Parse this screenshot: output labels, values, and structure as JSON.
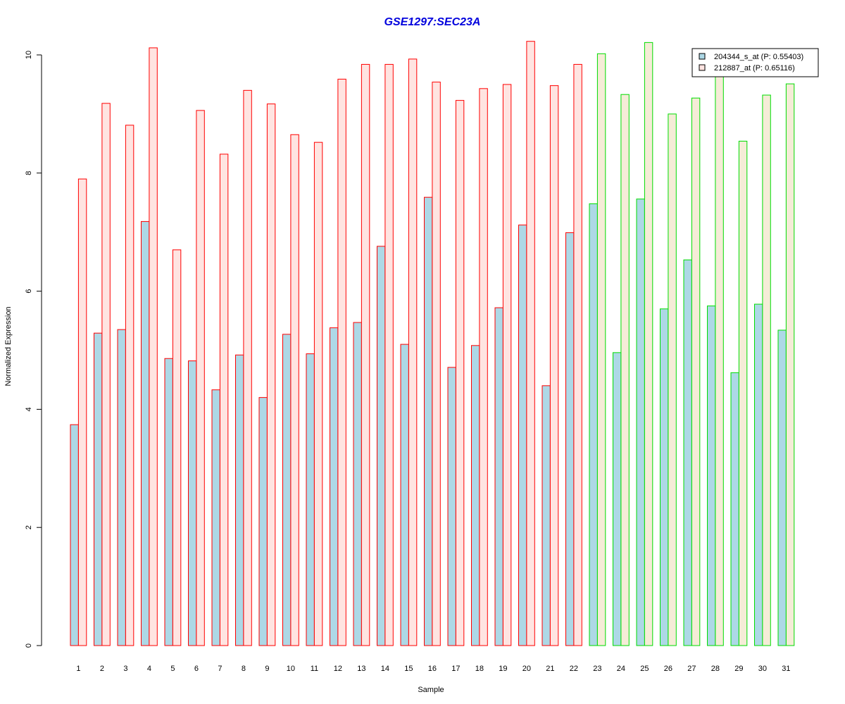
{
  "chart_data": {
    "type": "bar",
    "title": "GSE1297:SEC23A",
    "xlabel": "Sample",
    "ylabel": "Normalized Expression",
    "ylim": [
      0,
      10.4
    ],
    "yticks": [
      0,
      2,
      4,
      6,
      8,
      10
    ],
    "grid": false,
    "legend_position": "top-right",
    "categories": [
      "1",
      "2",
      "3",
      "4",
      "5",
      "6",
      "7",
      "8",
      "9",
      "10",
      "11",
      "12",
      "13",
      "14",
      "15",
      "16",
      "17",
      "18",
      "19",
      "20",
      "21",
      "22",
      "23",
      "24",
      "25",
      "26",
      "27",
      "28",
      "29",
      "30",
      "31"
    ],
    "series": [
      {
        "name": "204344_s_at (P: 0.55403)",
        "values": [
          3.74,
          5.29,
          5.35,
          7.18,
          4.86,
          4.82,
          4.33,
          4.92,
          4.2,
          5.27,
          4.94,
          5.38,
          5.47,
          6.76,
          5.1,
          7.59,
          4.71,
          5.08,
          5.72,
          7.12,
          4.4,
          6.99,
          7.48,
          4.96,
          7.56,
          5.7,
          6.53,
          5.75,
          4.62,
          5.78,
          5.34
        ]
      },
      {
        "name": "212887_at (P: 0.65116)",
        "values": [
          7.9,
          9.18,
          8.81,
          10.12,
          6.7,
          9.06,
          8.32,
          9.4,
          9.17,
          8.65,
          8.52,
          9.59,
          9.84,
          9.84,
          9.93,
          9.54,
          9.23,
          9.43,
          9.5,
          10.23,
          9.48,
          9.84,
          10.02,
          9.33,
          10.21,
          9.0,
          9.27,
          9.72,
          8.54,
          9.32,
          9.51
        ]
      }
    ],
    "group_borders": {
      "1-22": "#ff0000",
      "23-31": "#00dd00"
    },
    "colors": {
      "title": "#0000dd",
      "series1_fill": "#add8e6",
      "series2_fill_group1": "#ffe4e1",
      "series2_fill_group2": "#f5ecd7",
      "group1_border": "#ff0000",
      "group2_border": "#00dd00"
    }
  }
}
